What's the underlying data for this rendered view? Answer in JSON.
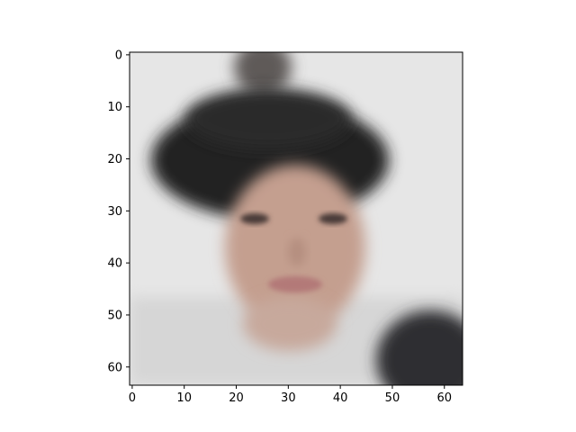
{
  "chart_data": {
    "type": "heatmap",
    "title": "",
    "xlabel": "",
    "ylabel": "",
    "image_size": [
      64,
      64
    ],
    "xlim": [
      -0.5,
      63.5
    ],
    "ylim": [
      63.5,
      -0.5
    ],
    "xticks": [
      0,
      10,
      20,
      30,
      40,
      50,
      60
    ],
    "yticks": [
      0,
      10,
      20,
      30,
      40,
      50,
      60
    ],
    "xtick_labels": [
      "0",
      "10",
      "20",
      "30",
      "40",
      "50",
      "60"
    ],
    "ytick_labels": [
      "0",
      "10",
      "20",
      "30",
      "40",
      "50",
      "60"
    ],
    "grid": false,
    "legend": "none",
    "image_content_icon": "blurry-face-portrait-icon",
    "colors": {
      "background_light": "#e6e6e6",
      "hair_dark": "#232323",
      "skin": "#c49f8f",
      "lips": "#b37978",
      "eyes": "#4a3a38",
      "dark_corner": "#2e2e30"
    }
  }
}
